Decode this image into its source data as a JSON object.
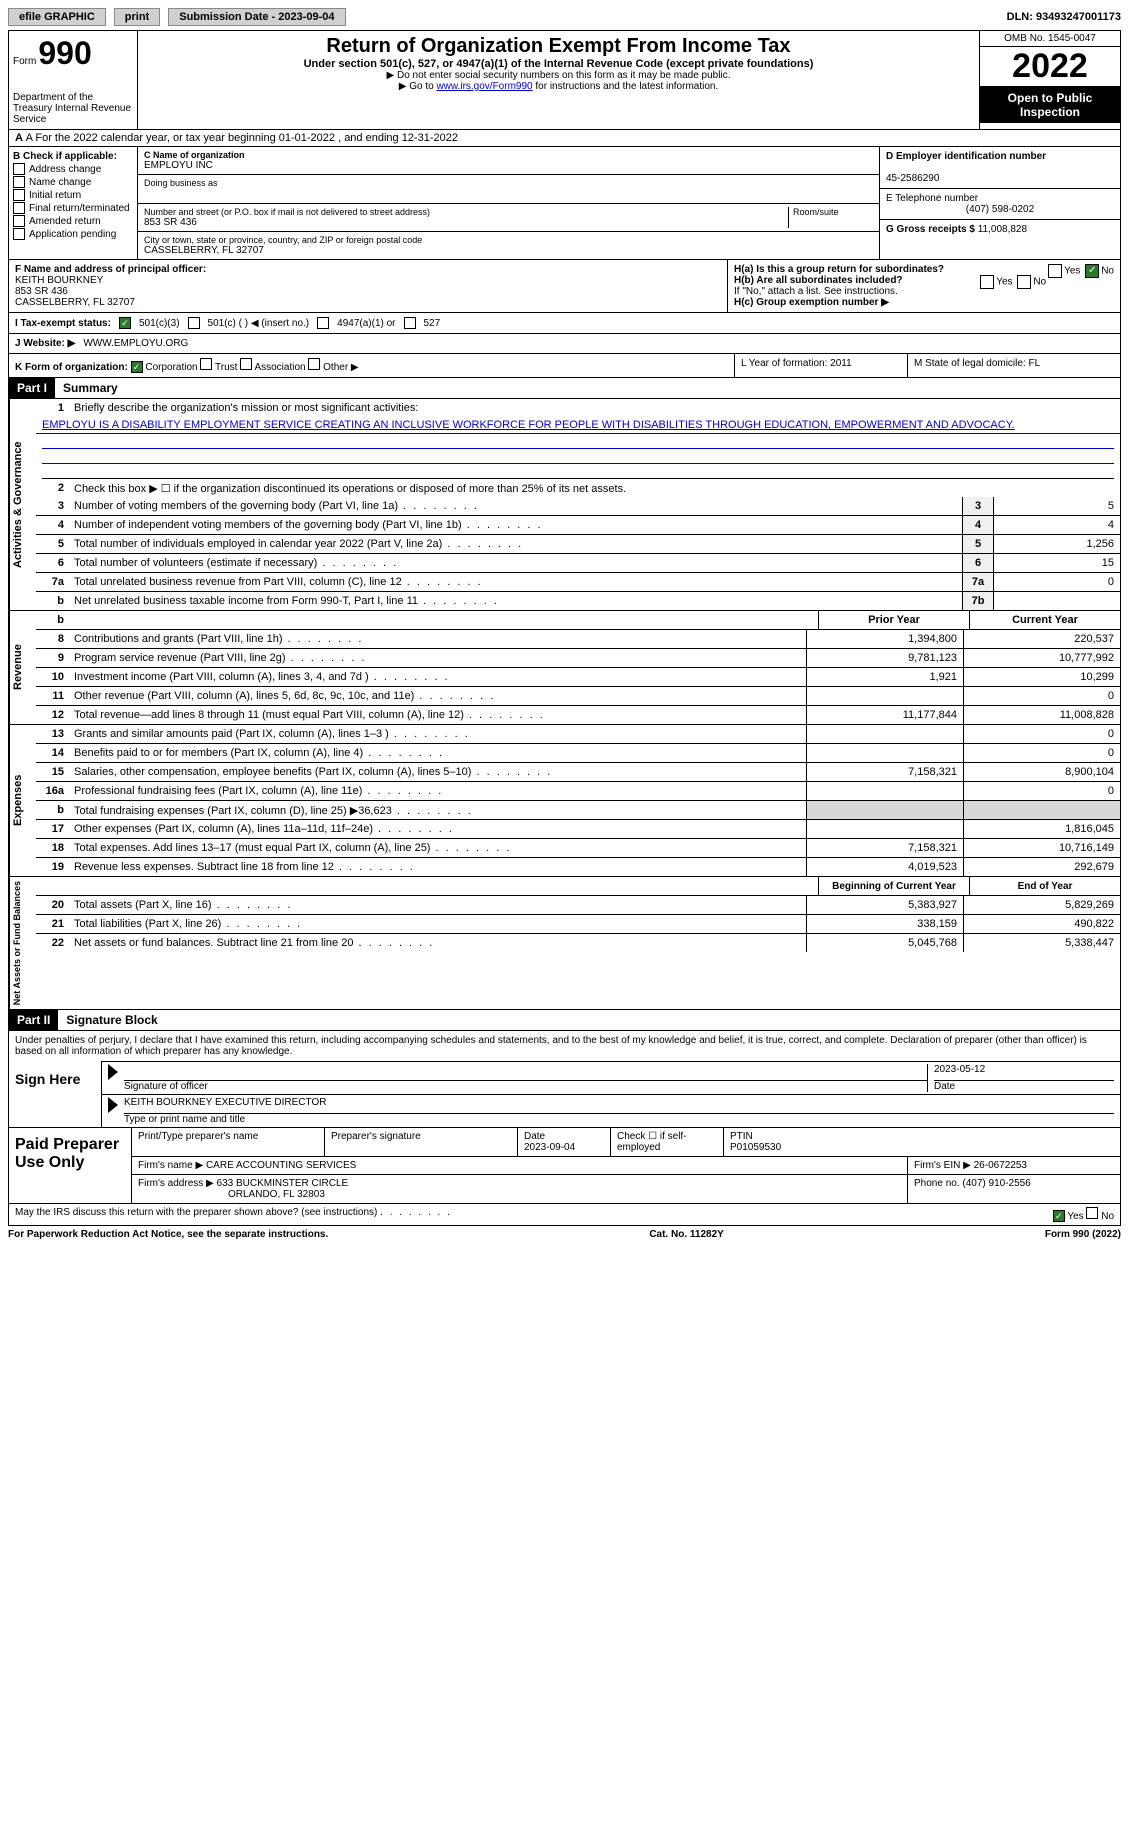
{
  "topbar": {
    "efile": "efile GRAPHIC",
    "print": "print",
    "sub_label": "Submission Date - 2023-09-04",
    "dln": "DLN: 93493247001173"
  },
  "header": {
    "form_word": "Form",
    "form_num": "990",
    "dept": "Department of the Treasury Internal Revenue Service",
    "title": "Return of Organization Exempt From Income Tax",
    "sub": "Under section 501(c), 527, or 4947(a)(1) of the Internal Revenue Code (except private foundations)",
    "note1": "▶ Do not enter social security numbers on this form as it may be made public.",
    "note2_pre": "▶ Go to ",
    "note2_link": "www.irs.gov/Form990",
    "note2_post": " for instructions and the latest information.",
    "omb": "OMB No. 1545-0047",
    "year": "2022",
    "open": "Open to Public Inspection"
  },
  "rowA": "A For the 2022 calendar year, or tax year beginning 01-01-2022    , and ending 12-31-2022",
  "colB": {
    "title": "B Check if applicable:",
    "items": [
      "Address change",
      "Name change",
      "Initial return",
      "Final return/terminated",
      "Amended return",
      "Application pending"
    ]
  },
  "colC": {
    "name_label": "C Name of organization",
    "name": "EMPLOYU INC",
    "dba_label": "Doing business as",
    "addr_label": "Number and street (or P.O. box if mail is not delivered to street address)",
    "room_label": "Room/suite",
    "addr": "853 SR 436",
    "city_label": "City or town, state or province, country, and ZIP or foreign postal code",
    "city": "CASSELBERRY, FL  32707"
  },
  "colD": {
    "ein_label": "D Employer identification number",
    "ein": "45-2586290",
    "tel_label": "E Telephone number",
    "tel": "(407) 598-0202",
    "gross_label": "G Gross receipts $",
    "gross": "11,008,828"
  },
  "rowF": {
    "label": "F  Name and address of principal officer:",
    "name": "KEITH BOURKNEY",
    "addr1": "853 SR 436",
    "addr2": "CASSELBERRY, FL  32707"
  },
  "rowH": {
    "ha": "H(a)  Is this a group return for subordinates?",
    "hb": "H(b)  Are all subordinates included?",
    "hb_note": "If \"No,\" attach a list. See instructions.",
    "hc": "H(c)  Group exemption number ▶"
  },
  "rowI": {
    "label": "I    Tax-exempt status:",
    "opts": [
      "501(c)(3)",
      "501(c) (  ) ◀ (insert no.)",
      "4947(a)(1) or",
      "527"
    ]
  },
  "rowJ": {
    "label": "J   Website: ▶",
    "val": "WWW.EMPLOYU.ORG"
  },
  "rowK": {
    "label": "K Form of organization:",
    "opts": [
      "Corporation",
      "Trust",
      "Association",
      "Other ▶"
    ],
    "L": "L Year of formation: 2011",
    "M": "M State of legal domicile: FL"
  },
  "part1": {
    "num": "Part I",
    "title": "Summary",
    "line1_label": "Briefly describe the organization's mission or most significant activities:",
    "mission": "EMPLOYU IS A DISABILITY EMPLOYMENT SERVICE CREATING AN INCLUSIVE WORKFORCE FOR PEOPLE WITH DISABILITIES THROUGH EDUCATION, EMPOWERMENT AND ADVOCACY.",
    "line2": "Check this box ▶ ☐ if the organization discontinued its operations or disposed of more than 25% of its net assets.",
    "rows_ag": [
      {
        "n": "3",
        "t": "Number of voting members of the governing body (Part VI, line 1a)",
        "box": "3",
        "v": "5"
      },
      {
        "n": "4",
        "t": "Number of independent voting members of the governing body (Part VI, line 1b)",
        "box": "4",
        "v": "4"
      },
      {
        "n": "5",
        "t": "Total number of individuals employed in calendar year 2022 (Part V, line 2a)",
        "box": "5",
        "v": "1,256"
      },
      {
        "n": "6",
        "t": "Total number of volunteers (estimate if necessary)",
        "box": "6",
        "v": "15"
      },
      {
        "n": "7a",
        "t": "Total unrelated business revenue from Part VIII, column (C), line 12",
        "box": "7a",
        "v": "0"
      },
      {
        "n": "b",
        "t": "Net unrelated business taxable income from Form 990-T, Part I, line 11",
        "box": "7b",
        "v": ""
      }
    ],
    "col_hdrs": {
      "prior": "Prior Year",
      "current": "Current Year"
    },
    "rev": [
      {
        "n": "8",
        "t": "Contributions and grants (Part VIII, line 1h)",
        "p": "1,394,800",
        "c": "220,537"
      },
      {
        "n": "9",
        "t": "Program service revenue (Part VIII, line 2g)",
        "p": "9,781,123",
        "c": "10,777,992"
      },
      {
        "n": "10",
        "t": "Investment income (Part VIII, column (A), lines 3, 4, and 7d )",
        "p": "1,921",
        "c": "10,299"
      },
      {
        "n": "11",
        "t": "Other revenue (Part VIII, column (A), lines 5, 6d, 8c, 9c, 10c, and 11e)",
        "p": "",
        "c": "0"
      },
      {
        "n": "12",
        "t": "Total revenue—add lines 8 through 11 (must equal Part VIII, column (A), line 12)",
        "p": "11,177,844",
        "c": "11,008,828"
      }
    ],
    "exp": [
      {
        "n": "13",
        "t": "Grants and similar amounts paid (Part IX, column (A), lines 1–3 )",
        "p": "",
        "c": "0"
      },
      {
        "n": "14",
        "t": "Benefits paid to or for members (Part IX, column (A), line 4)",
        "p": "",
        "c": "0"
      },
      {
        "n": "15",
        "t": "Salaries, other compensation, employee benefits (Part IX, column (A), lines 5–10)",
        "p": "7,158,321",
        "c": "8,900,104"
      },
      {
        "n": "16a",
        "t": "Professional fundraising fees (Part IX, column (A), line 11e)",
        "p": "",
        "c": "0"
      },
      {
        "n": "b",
        "t": "Total fundraising expenses (Part IX, column (D), line 25) ▶36,623",
        "p": "shade",
        "c": "shade"
      },
      {
        "n": "17",
        "t": "Other expenses (Part IX, column (A), lines 11a–11d, 11f–24e)",
        "p": "",
        "c": "1,816,045"
      },
      {
        "n": "18",
        "t": "Total expenses. Add lines 13–17 (must equal Part IX, column (A), line 25)",
        "p": "7,158,321",
        "c": "10,716,149"
      },
      {
        "n": "19",
        "t": "Revenue less expenses. Subtract line 18 from line 12",
        "p": "4,019,523",
        "c": "292,679"
      }
    ],
    "na_hdrs": {
      "beg": "Beginning of Current Year",
      "end": "End of Year"
    },
    "na": [
      {
        "n": "20",
        "t": "Total assets (Part X, line 16)",
        "p": "5,383,927",
        "c": "5,829,269"
      },
      {
        "n": "21",
        "t": "Total liabilities (Part X, line 26)",
        "p": "338,159",
        "c": "490,822"
      },
      {
        "n": "22",
        "t": "Net assets or fund balances. Subtract line 21 from line 20",
        "p": "5,045,768",
        "c": "5,338,447"
      }
    ],
    "tabs": {
      "ag": "Activities & Governance",
      "rev": "Revenue",
      "exp": "Expenses",
      "na": "Net Assets or Fund Balances"
    }
  },
  "part2": {
    "num": "Part II",
    "title": "Signature Block",
    "decl": "Under penalties of perjury, I declare that I have examined this return, including accompanying schedules and statements, and to the best of my knowledge and belief, it is true, correct, and complete. Declaration of preparer (other than officer) is based on all information of which preparer has any knowledge.",
    "sign_here": "Sign Here",
    "sig_officer": "Signature of officer",
    "sig_date": "2023-05-12",
    "date_label": "Date",
    "officer_name": "KEITH BOURKNEY EXECUTIVE DIRECTOR",
    "officer_sub": "Type or print name and title",
    "paid": "Paid Preparer Use Only",
    "prep_name_label": "Print/Type preparer's name",
    "prep_sig_label": "Preparer's signature",
    "prep_date_label": "Date",
    "prep_date": "2023-09-04",
    "check_if": "Check ☐ if self-employed",
    "ptin_label": "PTIN",
    "ptin": "P01059530",
    "firm_name_label": "Firm's name    ▶",
    "firm_name": "CARE ACCOUNTING SERVICES",
    "firm_ein_label": "Firm's EIN ▶",
    "firm_ein": "26-0672253",
    "firm_addr_label": "Firm's address ▶",
    "firm_addr1": "633 BUCKMINSTER CIRCLE",
    "firm_addr2": "ORLANDO, FL 32803",
    "phone_label": "Phone no.",
    "phone": "(407) 910-2556",
    "may_irs": "May the IRS discuss this return with the preparer shown above? (see instructions)"
  },
  "footer": {
    "left": "For Paperwork Reduction Act Notice, see the separate instructions.",
    "mid": "Cat. No. 11282Y",
    "right": "Form 990 (2022)"
  }
}
